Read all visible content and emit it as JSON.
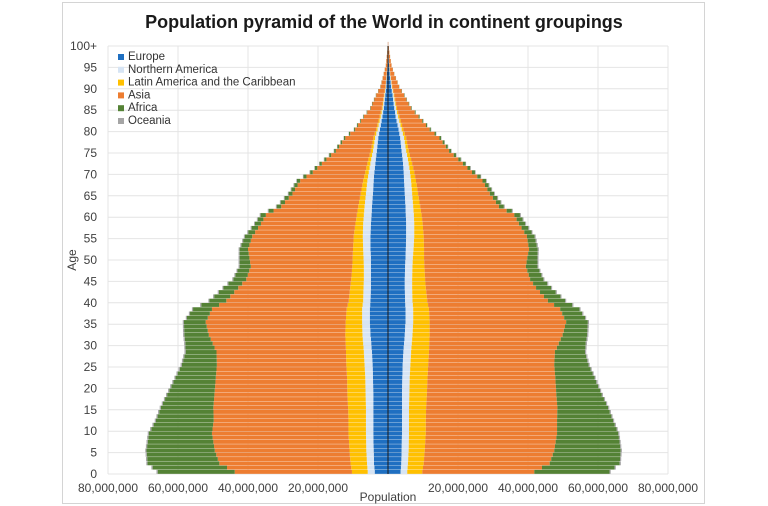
{
  "chart_data": {
    "type": "bar",
    "orientation": "horizontal-pyramid",
    "title": "Population pyramid of the World in continent groupings",
    "xlabel": "Population",
    "ylabel": "Age",
    "xlim": [
      -80000000,
      80000000
    ],
    "x_ticks": [
      {
        "value": -80000000,
        "label": "80,000,000"
      },
      {
        "value": -60000000,
        "label": "60,000,000"
      },
      {
        "value": -40000000,
        "label": "40,000,000"
      },
      {
        "value": -20000000,
        "label": "20,000,000"
      },
      {
        "value": 20000000,
        "label": "20,000,000"
      },
      {
        "value": 40000000,
        "label": "40,000,000"
      },
      {
        "value": 60000000,
        "label": "60,000,000"
      },
      {
        "value": 80000000,
        "label": "80,000,000"
      }
    ],
    "y_ticks": [
      {
        "age": 0,
        "label": "0"
      },
      {
        "age": 5,
        "label": "5"
      },
      {
        "age": 10,
        "label": "10"
      },
      {
        "age": 15,
        "label": "15"
      },
      {
        "age": 20,
        "label": "20"
      },
      {
        "age": 25,
        "label": "25"
      },
      {
        "age": 30,
        "label": "30"
      },
      {
        "age": 35,
        "label": "35"
      },
      {
        "age": 40,
        "label": "40"
      },
      {
        "age": 45,
        "label": "45"
      },
      {
        "age": 50,
        "label": "50"
      },
      {
        "age": 55,
        "label": "55"
      },
      {
        "age": 60,
        "label": "60"
      },
      {
        "age": 65,
        "label": "65"
      },
      {
        "age": 70,
        "label": "70"
      },
      {
        "age": 75,
        "label": "75"
      },
      {
        "age": 80,
        "label": "80"
      },
      {
        "age": 85,
        "label": "85"
      },
      {
        "age": 90,
        "label": "90"
      },
      {
        "age": 95,
        "label": "95"
      },
      {
        "age": 100,
        "label": "100+"
      }
    ],
    "grid": true,
    "legend_position": "top-left",
    "stacking": "from-center-outward",
    "age_key_points": [
      0,
      2,
      5,
      9,
      12,
      15,
      18,
      22,
      25,
      28,
      30,
      32,
      35,
      38,
      40,
      43,
      45,
      48,
      50,
      52,
      55,
      58,
      60,
      62,
      65,
      68,
      70,
      73,
      75,
      78,
      80,
      83,
      85,
      88,
      90,
      93,
      95,
      98,
      100
    ],
    "series": [
      {
        "name": "Europe",
        "color": "#1f6fc1",
        "left": [
          3.8,
          4.0,
          4.1,
          4.2,
          4.2,
          4.2,
          4.2,
          4.3,
          4.4,
          4.6,
          4.8,
          5.0,
          5.2,
          5.2,
          5.0,
          4.9,
          4.9,
          4.9,
          4.9,
          5.0,
          5.0,
          4.9,
          4.7,
          4.6,
          4.3,
          4.1,
          3.9,
          3.5,
          3.2,
          2.8,
          2.3,
          1.6,
          1.2,
          0.8,
          0.5,
          0.3,
          0.15,
          0.05,
          0.02
        ],
        "right": [
          3.6,
          3.8,
          3.9,
          4.0,
          4.0,
          4.0,
          4.0,
          4.1,
          4.2,
          4.4,
          4.6,
          4.8,
          5.0,
          5.0,
          4.9,
          4.8,
          4.8,
          4.9,
          5.0,
          5.1,
          5.2,
          5.2,
          5.1,
          5.0,
          4.8,
          4.6,
          4.5,
          4.2,
          3.9,
          3.5,
          3.0,
          2.2,
          1.8,
          1.3,
          0.9,
          0.5,
          0.3,
          0.1,
          0.04
        ]
      },
      {
        "name": "Northern America",
        "color": "#d6e4f4",
        "left": [
          2.0,
          2.0,
          2.1,
          2.1,
          2.1,
          2.1,
          2.2,
          2.2,
          2.3,
          2.3,
          2.3,
          2.3,
          2.2,
          2.2,
          2.1,
          2.1,
          2.0,
          2.0,
          2.1,
          2.1,
          2.2,
          2.2,
          2.2,
          2.1,
          2.0,
          1.8,
          1.6,
          1.3,
          1.1,
          0.9,
          0.7,
          0.5,
          0.35,
          0.25,
          0.15,
          0.08,
          0.04,
          0.02,
          0.01
        ],
        "right": [
          1.9,
          1.9,
          2.0,
          2.0,
          2.0,
          2.0,
          2.1,
          2.1,
          2.2,
          2.2,
          2.2,
          2.2,
          2.2,
          2.2,
          2.1,
          2.1,
          2.1,
          2.1,
          2.1,
          2.2,
          2.3,
          2.3,
          2.3,
          2.2,
          2.1,
          2.0,
          1.8,
          1.5,
          1.3,
          1.1,
          0.9,
          0.7,
          0.5,
          0.35,
          0.25,
          0.12,
          0.06,
          0.03,
          0.01
        ]
      },
      {
        "name": "Latin America and the Caribbean",
        "color": "#ffc000",
        "left": [
          4.5,
          4.7,
          4.8,
          5.0,
          5.0,
          5.1,
          5.2,
          5.2,
          5.2,
          5.1,
          5.0,
          4.9,
          4.7,
          4.4,
          4.1,
          3.8,
          3.6,
          3.3,
          3.1,
          2.9,
          2.6,
          2.2,
          2.0,
          1.8,
          1.5,
          1.2,
          1.0,
          0.8,
          0.6,
          0.5,
          0.4,
          0.3,
          0.2,
          0.12,
          0.08,
          0.04,
          0.02,
          0.01,
          0.0
        ],
        "right": [
          4.3,
          4.5,
          4.6,
          4.8,
          4.8,
          4.9,
          5.0,
          5.1,
          5.1,
          5.1,
          5.0,
          4.9,
          4.7,
          4.5,
          4.2,
          3.9,
          3.7,
          3.4,
          3.2,
          3.0,
          2.7,
          2.4,
          2.2,
          2.0,
          1.7,
          1.4,
          1.2,
          0.9,
          0.75,
          0.6,
          0.5,
          0.35,
          0.25,
          0.15,
          0.1,
          0.05,
          0.03,
          0.01,
          0.0
        ]
      },
      {
        "name": "Asia",
        "color": "#ed7d31",
        "left": [
          33.5,
          37.5,
          38.5,
          39.0,
          38.5,
          38.5,
          38.0,
          37.5,
          37.0,
          37.0,
          38.0,
          39.0,
          40.0,
          38.5,
          35.0,
          32.0,
          30.0,
          29.0,
          29.5,
          30.0,
          29.0,
          27.0,
          26.0,
          22.0,
          19.5,
          18.0,
          15.0,
          12.0,
          10.0,
          8.0,
          6.0,
          4.5,
          3.2,
          2.2,
          1.4,
          0.8,
          0.4,
          0.15,
          0.05
        ],
        "right": [
          32.0,
          36.0,
          37.0,
          37.5,
          37.5,
          37.5,
          37.0,
          36.5,
          36.0,
          36.0,
          37.0,
          38.0,
          39.0,
          37.5,
          34.5,
          31.5,
          30.0,
          29.0,
          29.5,
          30.0,
          29.5,
          27.5,
          26.5,
          22.5,
          20.5,
          19.0,
          16.5,
          13.5,
          11.5,
          9.5,
          7.5,
          5.5,
          4.0,
          2.8,
          1.9,
          1.1,
          0.6,
          0.25,
          0.08
        ]
      },
      {
        "name": "Africa",
        "color": "#548235",
        "left": [
          22.0,
          20.5,
          19.5,
          18.0,
          16.5,
          15.0,
          13.5,
          11.5,
          10.0,
          8.8,
          7.8,
          7.0,
          6.2,
          5.4,
          4.8,
          4.2,
          3.7,
          3.2,
          2.8,
          2.4,
          2.1,
          1.7,
          1.5,
          1.3,
          1.1,
          0.9,
          0.75,
          0.6,
          0.5,
          0.4,
          0.3,
          0.2,
          0.15,
          0.1,
          0.06,
          0.03,
          0.02,
          0.01,
          0.0
        ],
        "right": [
          21.5,
          20.0,
          19.0,
          17.5,
          16.0,
          14.5,
          13.0,
          11.2,
          9.8,
          8.6,
          7.7,
          7.0,
          6.2,
          5.5,
          4.9,
          4.3,
          3.8,
          3.3,
          2.9,
          2.5,
          2.2,
          1.8,
          1.6,
          1.4,
          1.2,
          1.0,
          0.85,
          0.7,
          0.6,
          0.45,
          0.35,
          0.25,
          0.18,
          0.12,
          0.07,
          0.04,
          0.02,
          0.01,
          0.0
        ]
      },
      {
        "name": "Oceania",
        "color": "#a5a5a5",
        "left": [
          0.35,
          0.35,
          0.35,
          0.34,
          0.34,
          0.33,
          0.33,
          0.34,
          0.35,
          0.35,
          0.35,
          0.35,
          0.34,
          0.33,
          0.32,
          0.31,
          0.3,
          0.3,
          0.3,
          0.29,
          0.28,
          0.27,
          0.26,
          0.24,
          0.22,
          0.2,
          0.18,
          0.14,
          0.12,
          0.1,
          0.08,
          0.06,
          0.04,
          0.03,
          0.02,
          0.01,
          0.01,
          0.0,
          0.0
        ],
        "right": [
          0.33,
          0.33,
          0.33,
          0.32,
          0.32,
          0.32,
          0.32,
          0.33,
          0.34,
          0.34,
          0.34,
          0.34,
          0.33,
          0.32,
          0.31,
          0.3,
          0.3,
          0.3,
          0.3,
          0.3,
          0.29,
          0.28,
          0.27,
          0.25,
          0.23,
          0.21,
          0.19,
          0.16,
          0.14,
          0.12,
          0.1,
          0.07,
          0.05,
          0.04,
          0.03,
          0.02,
          0.01,
          0.0,
          0.0
        ]
      }
    ],
    "values_unit_note": "series values in millions of people per single-year age group"
  }
}
